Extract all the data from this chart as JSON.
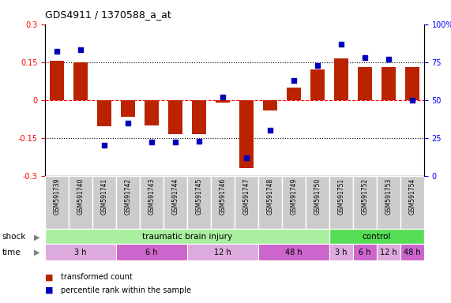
{
  "title": "GDS4911 / 1370588_a_at",
  "samples": [
    "GSM591739",
    "GSM591740",
    "GSM591741",
    "GSM591742",
    "GSM591743",
    "GSM591744",
    "GSM591745",
    "GSM591746",
    "GSM591747",
    "GSM591748",
    "GSM591749",
    "GSM591750",
    "GSM591751",
    "GSM591752",
    "GSM591753",
    "GSM591754"
  ],
  "transformed_count": [
    0.155,
    0.148,
    -0.105,
    -0.065,
    -0.1,
    -0.135,
    -0.135,
    -0.01,
    -0.27,
    -0.04,
    0.05,
    0.12,
    0.165,
    0.13,
    0.13,
    0.13
  ],
  "percentile_rank": [
    82,
    83,
    20,
    35,
    22,
    22,
    23,
    52,
    12,
    30,
    63,
    73,
    87,
    78,
    77,
    50
  ],
  "ylim_left": [
    -0.3,
    0.3
  ],
  "ylim_right": [
    0,
    100
  ],
  "bar_color": "#bb2200",
  "dot_color": "#0000bb",
  "shock_tbi_color": "#aaeea0",
  "shock_ctrl_color": "#55dd55",
  "time_light_color": "#ddaadd",
  "time_dark_color": "#cc66cc",
  "shock_label": "shock",
  "time_label": "time",
  "sample_box_color": "#cccccc",
  "yticks_left": [
    -0.3,
    -0.15,
    0,
    0.15,
    0.3
  ],
  "yticks_right": [
    0,
    25,
    50,
    75,
    100
  ],
  "time_groups_tbi": [
    {
      "label": "3 h",
      "xstart": 0,
      "xend": 3,
      "color_idx": 0
    },
    {
      "label": "6 h",
      "xstart": 3,
      "xend": 7,
      "color_idx": 1
    },
    {
      "label": "12 h",
      "xstart": 7,
      "xend": 11,
      "color_idx": 0
    },
    {
      "label": "48 h",
      "xstart": 11,
      "xend": 12,
      "color_idx": 1
    }
  ],
  "time_groups_ctrl": [
    {
      "label": "3 h",
      "xstart": 12,
      "xend": 13,
      "color_idx": 0
    },
    {
      "label": "6 h",
      "xstart": 13,
      "xend": 14,
      "color_idx": 1
    },
    {
      "label": "12 h",
      "xstart": 14,
      "xend": 15,
      "color_idx": 0
    },
    {
      "label": "48 h",
      "xstart": 15,
      "xend": 16,
      "color_idx": 1
    }
  ]
}
